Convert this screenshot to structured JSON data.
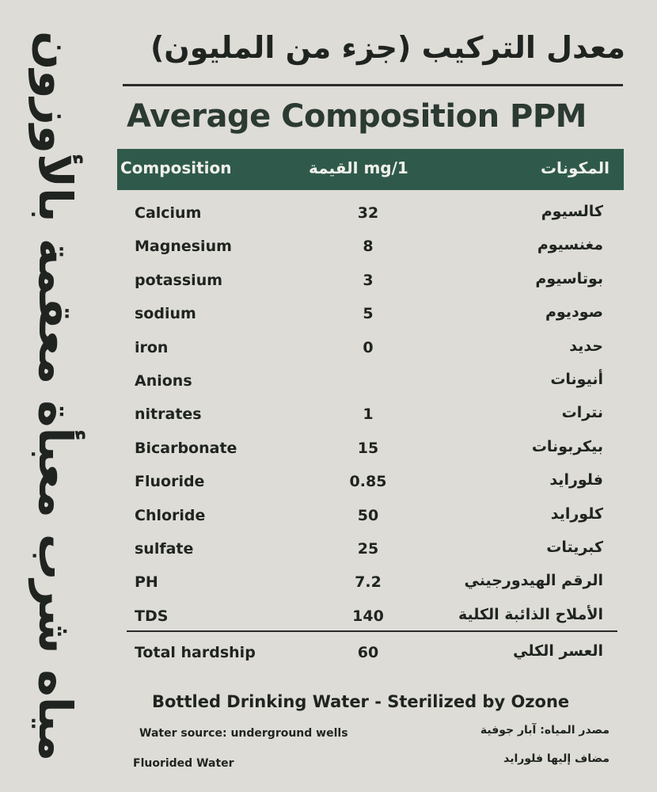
{
  "side_text": "مياه شرب معبأة معقمة بالأوزون",
  "header": {
    "arabic_title": "معدل التركيب (جزء من المليون)",
    "title": "Average Composition PPM"
  },
  "table": {
    "columns": [
      "Composition",
      "mg/1 القيمة",
      "المكونات"
    ],
    "rows": [
      {
        "name": "Calcium",
        "value": "32",
        "arabic": "كالسيوم"
      },
      {
        "name": "Magnesium",
        "value": "8",
        "arabic": "مغنسيوم"
      },
      {
        "name": "potassium",
        "value": "3",
        "arabic": "بوتاسيوم"
      },
      {
        "name": "sodium",
        "value": "5",
        "arabic": "صوديوم"
      },
      {
        "name": "iron",
        "value": "0",
        "arabic": "حديد"
      },
      {
        "name": "Anions",
        "arabic": "أنيونات"
      },
      {
        "name": "nitrates",
        "value": "1",
        "arabic": "نترات"
      },
      {
        "name": "Bicarbonate",
        "value": "15",
        "arabic": "بيكربونات"
      },
      {
        "name": "Fluoride",
        "value": "0.85",
        "arabic": "فلورايد"
      },
      {
        "name": "Chloride",
        "value": "50",
        "arabic": "كلورايد"
      },
      {
        "name": "sulfate",
        "value": "25",
        "arabic": "كبريتات"
      },
      {
        "name": "PH",
        "value": "7.2",
        "arabic": "الرقم الهيدورجيني"
      },
      {
        "name": "TDS",
        "value": "140",
        "arabic": "الأملاح الذائبة الكلية"
      },
      {
        "name": "Total hardship",
        "value": "60",
        "arabic": "العسر الكلي"
      }
    ]
  },
  "footer": {
    "tagline": "Bottled Drinking Water - Sterilized by Ozone",
    "source": "Water source: underground wells",
    "source_arabic": "مصدر المياه: آبار جوفية",
    "fluorided": "Fluorided Water",
    "fluorided_arabic": "مضاف إليها فلورايد"
  }
}
